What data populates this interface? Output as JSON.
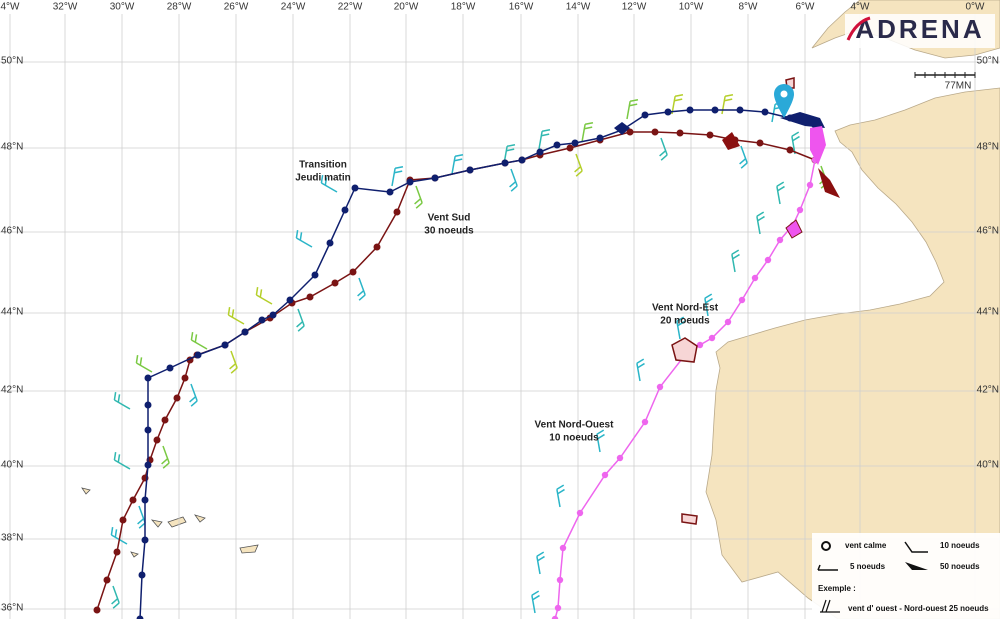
{
  "logo": "ADRENA",
  "scale": "77MN",
  "longitudes": [
    "4°W",
    "32°W",
    "30°W",
    "28°W",
    "26°W",
    "24°W",
    "22°W",
    "20°W",
    "18°W",
    "16°W",
    "14°W",
    "12°W",
    "10°W",
    "8°W",
    "6°W",
    "4°W",
    "0°W"
  ],
  "latitudes_left": [
    "50°N",
    "48°N",
    "46°N",
    "44°N",
    "42°N",
    "40°N",
    "38°N",
    "36°N"
  ],
  "latitudes_right": [
    "50°N",
    "48°N",
    "46°N",
    "44°N",
    "42°N",
    "40°N"
  ],
  "annotations": [
    {
      "line1": "Transition",
      "line2": "Jeudi matin"
    },
    {
      "line1": "Vent Sud",
      "line2": "30 noeuds"
    },
    {
      "line1": "Vent Nord-Est",
      "line2": "20 noeuds"
    },
    {
      "line1": "Vent Nord-Ouest",
      "line2": "10 noeuds"
    }
  ],
  "legend": {
    "calm": "vent calme",
    "ten": "10 noeuds",
    "five": "5 noeuds",
    "fifty": "50 noeuds",
    "example_title": "Exemple :",
    "example": "vent d' ouest - Nord-ouest 25 noeuds"
  }
}
